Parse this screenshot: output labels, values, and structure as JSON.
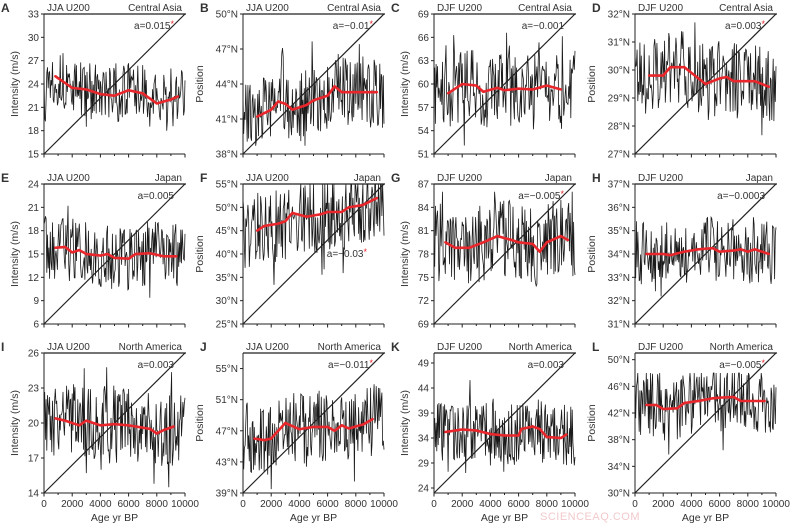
{
  "watermark": "SCIENCEAQ.COM",
  "colors": {
    "raw": "#1a1a1a",
    "trend": "#e8262b",
    "significance": "#e8262b",
    "axis": "#222222"
  },
  "chart_data": [
    {
      "panel": "A",
      "type": "line",
      "season": "JJA U200",
      "region": "Central Asia",
      "coef": "a=0.015",
      "significant": true,
      "ylabel": "Intensity (m/s)",
      "ylim": [
        15,
        33
      ],
      "yticks": [
        "15",
        "18",
        "21",
        "24",
        "27",
        "30",
        "33"
      ],
      "ytick_values": [
        15,
        18,
        21,
        24,
        27,
        30,
        33
      ],
      "raw_range": [
        18,
        30.3
      ],
      "trend": {
        "x": [
          800,
          2000,
          3000,
          4000,
          5000,
          6000,
          7000,
          8000,
          9000,
          9500
        ],
        "y": [
          25,
          23.5,
          23.3,
          22.7,
          22.5,
          23.2,
          22.8,
          21.5,
          22,
          22.4
        ]
      }
    },
    {
      "panel": "B",
      "type": "line",
      "season": "JJA U200",
      "region": "Central Asia",
      "coef": "a=−0.01",
      "significant": true,
      "ylabel": "Position",
      "ylim": [
        38,
        50
      ],
      "yticks": [
        "38°N",
        "41°N",
        "44°N",
        "47°N",
        "50°N"
      ],
      "ytick_values": [
        38,
        41,
        44,
        47,
        50
      ],
      "raw_range": [
        38.7,
        49.1
      ],
      "trend": {
        "x": [
          1000,
          2000,
          2500,
          3000,
          3500,
          4500,
          5000,
          6000,
          6500,
          7000,
          8000,
          9500
        ],
        "y": [
          41.2,
          41.8,
          42.5,
          42.3,
          41.8,
          42.2,
          42.6,
          43.0,
          43.8,
          43.3,
          43.3,
          43.3
        ]
      }
    },
    {
      "panel": "C",
      "type": "line",
      "season": "DJF U200",
      "region": "Central Asia",
      "coef": "a=−0.001",
      "significant": false,
      "ylabel": "Intensity (m/s)",
      "ylim": [
        51,
        69
      ],
      "yticks": [
        "51",
        "54",
        "57",
        "60",
        "63",
        "66",
        "69"
      ],
      "ytick_values": [
        51,
        54,
        57,
        60,
        63,
        66,
        69
      ],
      "raw_range": [
        51.7,
        67.5
      ],
      "trend": {
        "x": [
          1000,
          2000,
          3000,
          3500,
          4500,
          5000,
          6000,
          7000,
          8000,
          9000
        ],
        "y": [
          58.8,
          60,
          59.8,
          59,
          59.5,
          59.2,
          59.4,
          59.3,
          59.8,
          59.3
        ]
      }
    },
    {
      "panel": "D",
      "type": "line",
      "season": "DJF U200",
      "region": "Central Asia",
      "coef": "a=0.003",
      "significant": true,
      "ylabel": "Position",
      "ylim": [
        27,
        32
      ],
      "yticks": [
        "27°N",
        "28°N",
        "29°N",
        "30°N",
        "31°N",
        "32°N"
      ],
      "ytick_values": [
        27,
        28,
        29,
        30,
        31,
        32
      ],
      "raw_range": [
        27.1,
        31.7
      ],
      "trend": {
        "x": [
          1000,
          2000,
          2500,
          3500,
          4500,
          5000,
          6000,
          6500,
          7000,
          8500,
          9500
        ],
        "y": [
          29.8,
          29.8,
          30.1,
          30.1,
          29.7,
          29.5,
          29.7,
          29.75,
          29.6,
          29.6,
          29.4
        ]
      }
    },
    {
      "panel": "E",
      "type": "line",
      "season": "JJA U200",
      "region": "Japan",
      "coef": "a=0.005",
      "significant": false,
      "ylabel": "Intensity (m/s)",
      "ylim": [
        6,
        24
      ],
      "yticks": [
        "6",
        "9",
        "12",
        "15",
        "18",
        "21",
        "24"
      ],
      "ytick_values": [
        6,
        9,
        12,
        15,
        18,
        21,
        24
      ],
      "raw_range": [
        9,
        23
      ],
      "trend": {
        "x": [
          800,
          1500,
          2000,
          2500,
          3000,
          4000,
          4500,
          5000,
          6000,
          6500,
          7500,
          8500,
          9400
        ],
        "y": [
          15.8,
          15.9,
          15.2,
          15.5,
          15,
          14.8,
          15,
          14.5,
          14.4,
          15,
          15.1,
          14.7,
          14.7
        ]
      }
    },
    {
      "panel": "F",
      "type": "line",
      "season": "JJA U200",
      "region": "Japan",
      "coef": "a=−0.03",
      "significant": true,
      "coef_position": "bottom",
      "ylabel": "Position",
      "ylim": [
        25,
        55
      ],
      "yticks": [
        "25°N",
        "30°N",
        "35°N",
        "40°N",
        "45°N",
        "50°N",
        "55°N"
      ],
      "ytick_values": [
        25,
        30,
        35,
        40,
        45,
        50,
        55
      ],
      "raw_range": [
        27,
        55
      ],
      "trend": {
        "x": [
          1000,
          1500,
          2500,
          3000,
          3500,
          4500,
          5500,
          6000,
          7000,
          7500,
          8500,
          9500
        ],
        "y": [
          45,
          46,
          46.5,
          47,
          48.8,
          48,
          48.5,
          49,
          49,
          50,
          50.5,
          52
        ]
      }
    },
    {
      "panel": "G",
      "type": "line",
      "season": "DJF U200",
      "region": "Japan",
      "coef": "a=−0.005",
      "significant": true,
      "ylabel": "Intensity (m/s)",
      "ylim": [
        69,
        87
      ],
      "yticks": [
        "69",
        "72",
        "75",
        "78",
        "81",
        "84",
        "87"
      ],
      "ytick_values": [
        69,
        72,
        75,
        78,
        81,
        84,
        87
      ],
      "raw_range": [
        69,
        86
      ],
      "trend": {
        "x": [
          800,
          1500,
          2500,
          3500,
          4500,
          5500,
          6000,
          7000,
          7500,
          8000,
          9000,
          9500
        ],
        "y": [
          79.5,
          78.8,
          78.8,
          79.5,
          80.3,
          79.8,
          79.5,
          79.3,
          78.3,
          79.5,
          80.3,
          79.8
        ]
      }
    },
    {
      "panel": "H",
      "type": "line",
      "season": "DJF U200",
      "region": "Japan",
      "coef": "a=−0.0003",
      "significant": false,
      "ylabel": "Position",
      "ylim": [
        31,
        37
      ],
      "yticks": [
        "31°N",
        "32°N",
        "33°N",
        "34°N",
        "35°N",
        "36°N",
        "37°N"
      ],
      "ytick_values": [
        31,
        32,
        33,
        34,
        35,
        36,
        37
      ],
      "raw_range": [
        31.7,
        36.4
      ],
      "trend": {
        "x": [
          800,
          2000,
          2500,
          3500,
          4500,
          5500,
          6000,
          7000,
          7500,
          8000,
          8500,
          9500
        ],
        "y": [
          34,
          34,
          33.95,
          34.1,
          34.2,
          34.25,
          34.1,
          34.15,
          34.2,
          34.1,
          34.2,
          34
        ]
      }
    },
    {
      "panel": "I",
      "type": "line",
      "season": "JJA U200",
      "region": "North America",
      "coef": "a=0.003",
      "significant": false,
      "ylabel": "Intensity (m/s)",
      "xlabel": "Age yr BP",
      "ylim": [
        14,
        26
      ],
      "yticks": [
        "14",
        "17",
        "20",
        "23",
        "26"
      ],
      "ytick_values": [
        14,
        17,
        20,
        23,
        26
      ],
      "raw_range": [
        14.5,
        25.7
      ],
      "trend": {
        "x": [
          800,
          1500,
          2500,
          3000,
          4000,
          5000,
          6000,
          7000,
          7500,
          8000,
          8500,
          9200
        ],
        "y": [
          20.4,
          20.2,
          19.8,
          20.2,
          19.8,
          19.9,
          19.8,
          19.6,
          19.5,
          19.1,
          19.4,
          19.7
        ]
      }
    },
    {
      "panel": "J",
      "type": "line",
      "season": "JJA U200",
      "region": "North America",
      "coef": "a=−0.011",
      "significant": true,
      "ylabel": "Position",
      "xlabel": "Age yr BP",
      "ylim": [
        39,
        57
      ],
      "yticks": [
        "39°N",
        "43°N",
        "47°N",
        "51°N",
        "55°N"
      ],
      "ytick_values": [
        39,
        43,
        47,
        51,
        55
      ],
      "raw_range": [
        39.5,
        55
      ],
      "trend": {
        "x": [
          800,
          1500,
          2000,
          2500,
          3000,
          4000,
          5000,
          6000,
          6500,
          7000,
          7500,
          8500,
          9200
        ],
        "y": [
          46,
          45.8,
          46,
          47,
          48,
          47.2,
          47.5,
          47.5,
          47,
          47.7,
          47.3,
          47.8,
          48.5
        ]
      }
    },
    {
      "panel": "K",
      "type": "line",
      "season": "DJF U200",
      "region": "North America",
      "coef": "a=0.003",
      "significant": false,
      "ylabel": "Intensity (m/s)",
      "xlabel": "Age yr BP",
      "ylim": [
        23,
        51
      ],
      "yticks": [
        "24",
        "29",
        "34",
        "39",
        "44",
        "49"
      ],
      "ytick_values": [
        24,
        29,
        34,
        39,
        44,
        49
      ],
      "raw_range": [
        27,
        48
      ],
      "trend": {
        "x": [
          800,
          2000,
          3000,
          4000,
          5000,
          6000,
          6200,
          7000,
          7500,
          8000,
          9000,
          9400
        ],
        "y": [
          35.2,
          35.7,
          35.5,
          34.8,
          34.5,
          34.5,
          35.8,
          36.3,
          35.8,
          34.2,
          34,
          34.7
        ]
      }
    },
    {
      "panel": "L",
      "type": "line",
      "season": "DJF U200",
      "region": "North America",
      "coef": "a=−0.005",
      "significant": true,
      "ylabel": "Position",
      "xlabel": "Age yr BP",
      "ylim": [
        30,
        51
      ],
      "yticks": [
        "30°N",
        "34°N",
        "38°N",
        "42°N",
        "46°N",
        "50°N"
      ],
      "ytick_values": [
        30,
        34,
        38,
        42,
        46,
        50
      ],
      "raw_range": [
        32,
        48
      ],
      "trend": {
        "x": [
          800,
          1500,
          2000,
          3000,
          3500,
          4500,
          5500,
          6000,
          7000,
          7500,
          9200
        ],
        "y": [
          43.2,
          43.2,
          42.6,
          42.7,
          43.5,
          43.8,
          44.2,
          44.3,
          44.4,
          43.8,
          43.8
        ]
      }
    }
  ],
  "xaxis": {
    "xlim": [
      0,
      10000
    ],
    "ticks": [
      "0",
      "2000",
      "4000",
      "6000",
      "8000",
      "10000"
    ],
    "tick_values": [
      0,
      2000,
      4000,
      6000,
      8000,
      10000
    ],
    "label": "Age yr BP"
  },
  "significance_mark": "*"
}
